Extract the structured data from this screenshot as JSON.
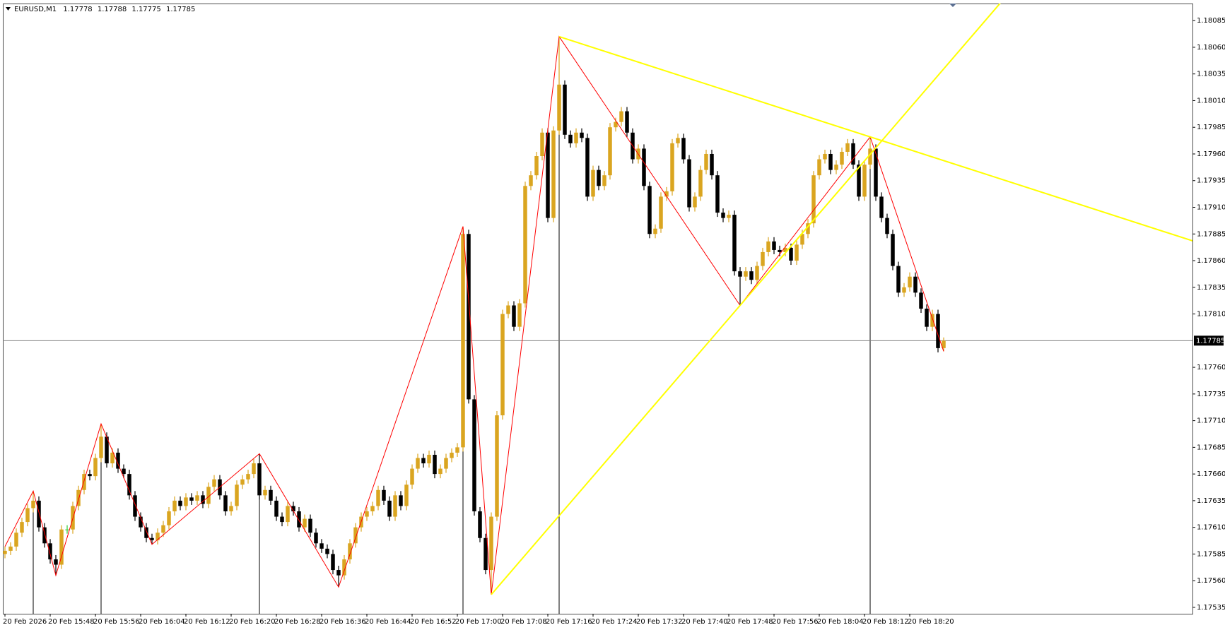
{
  "chart_data": {
    "type": "candlestick",
    "symbol": "EURUSD,M1",
    "categories": [
      "20 Feb 2026",
      null,
      null,
      null,
      null,
      null,
      null,
      null,
      "20 Feb 15:48",
      null,
      null,
      null,
      null,
      null,
      null,
      null,
      "20 Feb 15:56",
      null,
      null,
      null,
      null,
      null,
      null,
      null,
      "20 Feb 16:04",
      null,
      null,
      null,
      null,
      null,
      null,
      null,
      "20 Feb 16:12",
      null,
      null,
      null,
      null,
      null,
      null,
      null,
      "20 Feb 16:20",
      null,
      null,
      null,
      null,
      null,
      null,
      null,
      "20 Feb 16:28",
      null,
      null,
      null,
      null,
      null,
      null,
      null,
      "20 Feb 16:36",
      null,
      null,
      null,
      null,
      null,
      null,
      null,
      "20 Feb 16:44",
      null,
      null,
      null,
      null,
      null,
      null,
      null,
      "20 Feb 16:52",
      null,
      null,
      null,
      null,
      null,
      null,
      null,
      "20 Feb 17:00",
      null,
      null,
      null,
      null,
      null,
      null,
      null,
      "20 Feb 17:08",
      null,
      null,
      null,
      null,
      null,
      null,
      null,
      "20 Feb 17:16",
      null,
      null,
      null,
      null,
      null,
      null,
      null,
      "20 Feb 17:24",
      null,
      null,
      null,
      null,
      null,
      null,
      null,
      "20 Feb 17:32",
      null,
      null,
      null,
      null,
      null,
      null,
      null,
      "20 Feb 17:40",
      null,
      null,
      null,
      null,
      null,
      null,
      null,
      "20 Feb 17:48",
      null,
      null,
      null,
      null,
      null,
      null,
      null,
      "20 Feb 17:56",
      null,
      null,
      null,
      null,
      null,
      null,
      null,
      "20 Feb 18:04",
      null,
      null,
      null,
      null,
      null,
      null,
      null,
      "20 Feb 18:12",
      null,
      null,
      null,
      null,
      null,
      null,
      null,
      "20 Feb 18:20",
      null,
      null,
      null,
      null,
      null,
      null
    ],
    "open": [
      1.17585,
      1.17588,
      1.17592,
      1.17605,
      1.17615,
      1.17628,
      1.17635,
      1.1761,
      1.17595,
      1.1758,
      1.17575,
      1.17608,
      1.17608,
      1.1763,
      1.17645,
      1.1766,
      1.17658,
      1.17675,
      1.17695,
      1.1767,
      1.1768,
      1.17665,
      1.1766,
      1.1764,
      1.1762,
      1.1761,
      1.176,
      1.17598,
      1.17605,
      1.17612,
      1.17625,
      1.17635,
      1.1763,
      1.17638,
      1.17635,
      1.1764,
      1.17632,
      1.17648,
      1.17655,
      1.1764,
      1.17625,
      1.1763,
      1.1765,
      1.17655,
      1.1766,
      1.1767,
      1.1764,
      1.17645,
      1.17635,
      1.1762,
      1.17615,
      1.1763,
      1.17625,
      1.1761,
      1.17618,
      1.17605,
      1.17595,
      1.1759,
      1.17585,
      1.1757,
      1.17565,
      1.1758,
      1.17595,
      1.1761,
      1.1762,
      1.17625,
      1.1763,
      1.17645,
      1.17635,
      1.1762,
      1.1764,
      1.1763,
      1.1765,
      1.17665,
      1.17675,
      1.1767,
      1.17678,
      1.1766,
      1.17665,
      1.17675,
      1.1768,
      1.17685,
      1.17885,
      1.1773,
      1.17625,
      1.176,
      1.1757,
      1.1762,
      1.17715,
      1.1781,
      1.17818,
      1.17798,
      1.1782,
      1.1793,
      1.1794,
      1.17958,
      1.1798,
      1.179,
      1.17982,
      1.18025,
      1.17978,
      1.1797,
      1.1798,
      1.17975,
      1.1792,
      1.17945,
      1.1793,
      1.1794,
      1.17985,
      1.1799,
      1.18,
      1.1798,
      1.17955,
      1.17965,
      1.1793,
      1.17885,
      1.1789,
      1.1792,
      1.17925,
      1.1797,
      1.17975,
      1.17955,
      1.1791,
      1.1792,
      1.17945,
      1.1796,
      1.1794,
      1.17905,
      1.179,
      1.17903,
      1.1785,
      1.17845,
      1.1785,
      1.17842,
      1.17855,
      1.17868,
      1.17878,
      1.1787,
      1.17868,
      1.17872,
      1.1786,
      1.17875,
      1.17885,
      1.17895,
      1.1794,
      1.17955,
      1.1796,
      1.17945,
      1.1795,
      1.17962,
      1.1797,
      1.1795,
      1.1792,
      1.1795,
      1.17965,
      1.1792,
      1.179,
      1.17885,
      1.17855,
      1.1783,
      1.17835,
      1.17845,
      1.1783,
      1.17815,
      1.17798,
      1.1781,
      1.17778
    ],
    "high": [
      1.17592,
      1.17596,
      1.17609,
      1.17619,
      1.17632,
      1.17644,
      1.17639,
      1.17614,
      1.17599,
      1.17584,
      1.17612,
      1.17612,
      1.17634,
      1.17649,
      1.17664,
      1.17664,
      1.17679,
      1.17707,
      1.17699,
      1.17684,
      1.17684,
      1.17669,
      1.17664,
      1.17644,
      1.17624,
      1.17614,
      1.17604,
      1.17609,
      1.17616,
      1.17629,
      1.17639,
      1.17639,
      1.17642,
      1.17642,
      1.17644,
      1.17644,
      1.17652,
      1.17659,
      1.17659,
      1.17644,
      1.17634,
      1.17654,
      1.17659,
      1.17664,
      1.17674,
      1.17679,
      1.17649,
      1.17649,
      1.17639,
      1.17624,
      1.17634,
      1.17634,
      1.17629,
      1.17622,
      1.17622,
      1.17609,
      1.17599,
      1.17594,
      1.17589,
      1.17574,
      1.17584,
      1.17599,
      1.17614,
      1.17624,
      1.17629,
      1.17634,
      1.17649,
      1.17649,
      1.17639,
      1.17644,
      1.17644,
      1.17654,
      1.17669,
      1.17679,
      1.17679,
      1.17682,
      1.17682,
      1.17669,
      1.17679,
      1.17684,
      1.17689,
      1.17892,
      1.17889,
      1.17734,
      1.17629,
      1.17604,
      1.17624,
      1.17719,
      1.17814,
      1.17822,
      1.17822,
      1.17824,
      1.17934,
      1.17944,
      1.17962,
      1.17984,
      1.17984,
      1.17986,
      1.1807,
      1.18029,
      1.17982,
      1.17984,
      1.17984,
      1.17979,
      1.17949,
      1.17949,
      1.17944,
      1.17989,
      1.17994,
      1.18004,
      1.18004,
      1.17984,
      1.17969,
      1.17969,
      1.17934,
      1.17894,
      1.17924,
      1.17929,
      1.17974,
      1.17979,
      1.17979,
      1.17959,
      1.17924,
      1.17949,
      1.17964,
      1.17964,
      1.17944,
      1.17909,
      1.17907,
      1.17907,
      1.17854,
      1.17854,
      1.17854,
      1.17859,
      1.17872,
      1.17882,
      1.17882,
      1.17874,
      1.17876,
      1.17876,
      1.17879,
      1.17889,
      1.17899,
      1.17944,
      1.17959,
      1.17964,
      1.17964,
      1.17954,
      1.17966,
      1.17974,
      1.17974,
      1.17954,
      1.17954,
      1.17976,
      1.17969,
      1.17924,
      1.17904,
      1.17889,
      1.17859,
      1.17839,
      1.17849,
      1.17849,
      1.17834,
      1.17819,
      1.17814,
      1.17814,
      1.17788
    ],
    "low": [
      1.17581,
      1.17584,
      1.17588,
      1.17601,
      1.17611,
      1.17624,
      1.17606,
      1.17591,
      1.17576,
      1.17565,
      1.17571,
      1.17604,
      1.17604,
      1.17626,
      1.17641,
      1.17654,
      1.17654,
      1.17671,
      1.17666,
      1.17666,
      1.17661,
      1.17656,
      1.17636,
      1.17616,
      1.17606,
      1.17596,
      1.17594,
      1.17594,
      1.17601,
      1.17608,
      1.17621,
      1.17626,
      1.17626,
      1.17631,
      1.17631,
      1.17628,
      1.17628,
      1.17644,
      1.17636,
      1.17621,
      1.17621,
      1.17626,
      1.17646,
      1.17651,
      1.17656,
      1.17636,
      1.17636,
      1.17631,
      1.17616,
      1.17611,
      1.17611,
      1.17621,
      1.17606,
      1.17606,
      1.17601,
      1.17591,
      1.17586,
      1.17581,
      1.17566,
      1.17554,
      1.17561,
      1.17576,
      1.17591,
      1.17606,
      1.17616,
      1.17621,
      1.17626,
      1.17631,
      1.17616,
      1.17616,
      1.17626,
      1.17626,
      1.17646,
      1.17661,
      1.17666,
      1.17666,
      1.17656,
      1.17656,
      1.17661,
      1.17671,
      1.17676,
      1.17681,
      1.17726,
      1.17621,
      1.17596,
      1.17566,
      1.17547,
      1.17616,
      1.17711,
      1.17806,
      1.17794,
      1.17794,
      1.17816,
      1.17926,
      1.17936,
      1.17954,
      1.17896,
      1.17896,
      1.17978,
      1.17974,
      1.17966,
      1.17966,
      1.17971,
      1.17916,
      1.17916,
      1.17926,
      1.17926,
      1.17936,
      1.17981,
      1.17986,
      1.17976,
      1.17951,
      1.17951,
      1.17926,
      1.17881,
      1.17881,
      1.17886,
      1.17916,
      1.17921,
      1.17966,
      1.17951,
      1.17906,
      1.17906,
      1.17916,
      1.17941,
      1.17936,
      1.17901,
      1.17896,
      1.17896,
      1.17846,
      1.17818,
      1.17841,
      1.17838,
      1.17838,
      1.17851,
      1.17864,
      1.17866,
      1.17864,
      1.17864,
      1.17856,
      1.17856,
      1.17871,
      1.17881,
      1.17891,
      1.17936,
      1.17951,
      1.17941,
      1.17941,
      1.17946,
      1.17958,
      1.17946,
      1.17916,
      1.17916,
      1.17946,
      1.17916,
      1.17896,
      1.17881,
      1.17851,
      1.17826,
      1.17826,
      1.17831,
      1.17826,
      1.17811,
      1.17794,
      1.17794,
      1.17774,
      1.17775
    ],
    "close": [
      1.17588,
      1.17592,
      1.17605,
      1.17615,
      1.17628,
      1.17635,
      1.1761,
      1.17595,
      1.1758,
      1.17575,
      1.17608,
      1.17608,
      1.1763,
      1.17645,
      1.1766,
      1.17658,
      1.17675,
      1.17695,
      1.1767,
      1.1768,
      1.17665,
      1.1766,
      1.1764,
      1.1762,
      1.1761,
      1.176,
      1.17598,
      1.17605,
      1.17612,
      1.17625,
      1.17635,
      1.1763,
      1.17638,
      1.17635,
      1.1764,
      1.17632,
      1.17648,
      1.17655,
      1.1764,
      1.17625,
      1.1763,
      1.1765,
      1.17655,
      1.1766,
      1.1767,
      1.1764,
      1.17645,
      1.17635,
      1.1762,
      1.17615,
      1.1763,
      1.17625,
      1.1761,
      1.17618,
      1.17605,
      1.17595,
      1.1759,
      1.17585,
      1.1757,
      1.17565,
      1.1758,
      1.17595,
      1.1761,
      1.1762,
      1.17625,
      1.1763,
      1.17645,
      1.17635,
      1.1762,
      1.1764,
      1.1763,
      1.1765,
      1.17665,
      1.17675,
      1.1767,
      1.17678,
      1.1766,
      1.17665,
      1.17675,
      1.1768,
      1.17685,
      1.17885,
      1.1773,
      1.17625,
      1.176,
      1.1757,
      1.1762,
      1.17715,
      1.1781,
      1.17818,
      1.17798,
      1.1782,
      1.1793,
      1.1794,
      1.17958,
      1.1798,
      1.179,
      1.17982,
      1.18025,
      1.17978,
      1.1797,
      1.1798,
      1.17975,
      1.1792,
      1.17945,
      1.1793,
      1.1794,
      1.17985,
      1.1799,
      1.18,
      1.1798,
      1.17955,
      1.17965,
      1.1793,
      1.17885,
      1.1789,
      1.1792,
      1.17925,
      1.1797,
      1.17975,
      1.17955,
      1.1791,
      1.1792,
      1.17945,
      1.1796,
      1.1794,
      1.17905,
      1.179,
      1.17903,
      1.1785,
      1.17845,
      1.1785,
      1.17842,
      1.17855,
      1.17868,
      1.17878,
      1.1787,
      1.17868,
      1.17872,
      1.1786,
      1.17875,
      1.17885,
      1.17895,
      1.1794,
      1.17955,
      1.1796,
      1.17945,
      1.1795,
      1.17962,
      1.1797,
      1.1795,
      1.1792,
      1.1795,
      1.17965,
      1.1792,
      1.179,
      1.17885,
      1.17855,
      1.1783,
      1.17835,
      1.17845,
      1.1783,
      1.17815,
      1.17798,
      1.1781,
      1.17778,
      1.17785
    ],
    "bull_color": "#daa520",
    "bear_color": "#000000",
    "doji_color": "#32cd32",
    "ylim": [
      1.17529,
      1.18101
    ],
    "yticks": [
      1.17535,
      {
        "value": 1.1756,
        "label": "1.17560"
      },
      1.17585,
      {
        "value": 1.1761,
        "label": "1.17610"
      },
      1.17635,
      {
        "value": 1.1766,
        "label": "1.17660"
      },
      1.17685,
      {
        "value": 1.1771,
        "label": "1.17710"
      },
      1.17735,
      {
        "value": 1.1776,
        "label": "1.17760"
      },
      {
        "value": 1.1781,
        "label": "1.17810"
      },
      1.17835,
      {
        "value": 1.1786,
        "label": "1.17860"
      },
      1.17885,
      {
        "value": 1.1791,
        "label": "1.17910"
      },
      1.17935,
      {
        "value": 1.1796,
        "label": "1.17960"
      },
      1.17985,
      {
        "value": 1.1801,
        "label": "1.18010"
      },
      1.18035,
      {
        "value": 1.1806,
        "label": "1.18060"
      },
      1.18085
    ],
    "grid": false,
    "zigzag": {
      "color": "#ff0000",
      "x": [
        0,
        5,
        9,
        17,
        26,
        45,
        59,
        81,
        86,
        98,
        130,
        153,
        166
      ],
      "values": [
        1.17592,
        1.17644,
        1.17565,
        1.17707,
        1.17594,
        1.17679,
        1.17554,
        1.17892,
        1.17547,
        1.1807,
        1.17818,
        1.17976,
        1.17775
      ]
    },
    "trendlines": [
      {
        "color": "#ffff00",
        "x": [
          98,
          153
        ],
        "values": [
          1.1807,
          1.17976
        ]
      },
      {
        "color": "#ffff00",
        "x": [
          86,
          130
        ],
        "values": [
          1.17547,
          1.17818
        ]
      }
    ],
    "bid_line_color": "#808080"
  }
}
